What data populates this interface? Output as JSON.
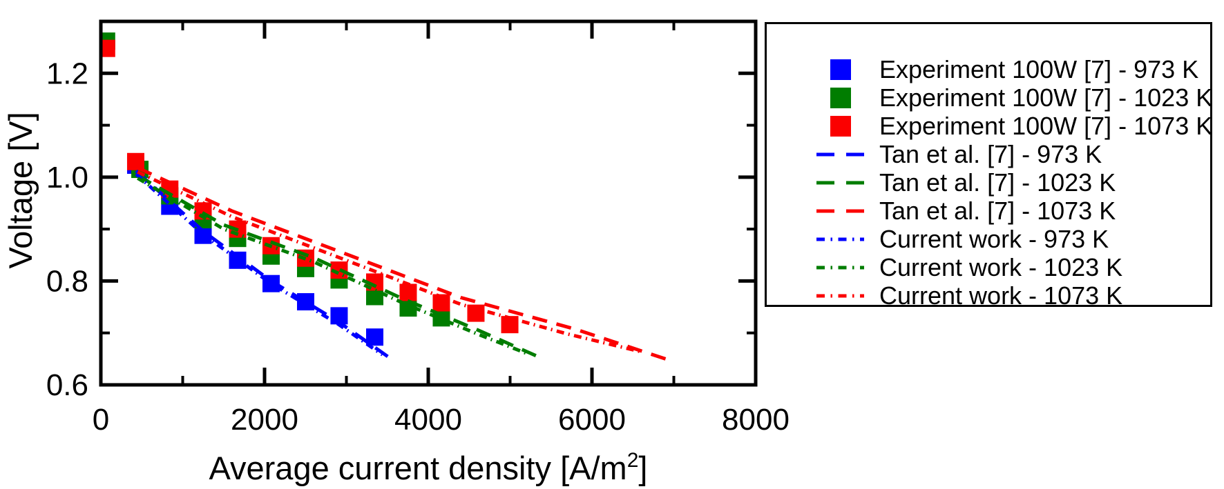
{
  "colors": {
    "blue": "#0000ff",
    "green": "#007d00",
    "red": "#fb0000",
    "axis": "#000000",
    "background": "#ffffff"
  },
  "chart_data": {
    "type": "scatter",
    "title": "",
    "xlabel": "Average current density [A/m2]",
    "xlabel_parts": {
      "pre": "Average current density [A/m",
      "sup": "2",
      "post": "]"
    },
    "ylabel": "Voltage [V]",
    "xlim": [
      0,
      8000
    ],
    "ylim": [
      0.6,
      1.3
    ],
    "x_major_ticks": [
      0,
      2000,
      4000,
      6000,
      8000
    ],
    "x_tick_labels": [
      "0",
      "2000",
      "4000",
      "6000",
      "8000"
    ],
    "x_minor_ticks": [
      1000,
      3000,
      5000,
      7000
    ],
    "y_major_ticks": [
      0.6,
      0.8,
      1.0,
      1.2
    ],
    "y_tick_labels": [
      "0.6",
      "0.8",
      "1.0",
      "1.2"
    ],
    "y_minor_ticks": [
      0.7,
      0.9,
      1.1
    ],
    "grid": false,
    "legend_position": "outside-right",
    "series": [
      {
        "name": "Experiment 100W [7] - 973 K",
        "color": "blue",
        "style": "marker",
        "points": [
          [
            426,
            1.023
          ],
          [
            842,
            0.944
          ],
          [
            1249,
            0.888
          ],
          [
            1671,
            0.84
          ],
          [
            2080,
            0.795
          ],
          [
            2502,
            0.76
          ],
          [
            2911,
            0.733
          ],
          [
            3346,
            0.692
          ]
        ]
      },
      {
        "name": "Experiment 100W [7] - 1023 K",
        "color": "green",
        "style": "marker",
        "points": [
          [
            70,
            1.262
          ],
          [
            477,
            1.015
          ],
          [
            842,
            0.964
          ],
          [
            1249,
            0.918
          ],
          [
            1671,
            0.882
          ],
          [
            2080,
            0.848
          ],
          [
            2502,
            0.824
          ],
          [
            2911,
            0.802
          ],
          [
            3346,
            0.77
          ],
          [
            3755,
            0.748
          ],
          [
            4160,
            0.729
          ]
        ]
      },
      {
        "name": "Experiment 100W [7] - 1073 K",
        "color": "red",
        "style": "marker",
        "points": [
          [
            70,
            1.248
          ],
          [
            426,
            1.03
          ],
          [
            842,
            0.977
          ],
          [
            1249,
            0.935
          ],
          [
            1671,
            0.9
          ],
          [
            2080,
            0.868
          ],
          [
            2502,
            0.844
          ],
          [
            2911,
            0.821
          ],
          [
            3346,
            0.798
          ],
          [
            3755,
            0.778
          ],
          [
            4160,
            0.758
          ],
          [
            4582,
            0.738
          ],
          [
            4996,
            0.716
          ]
        ]
      },
      {
        "name": "Tan et al. [7] - 973 K",
        "color": "blue",
        "style": "dash",
        "points": [
          [
            430,
            1.012
          ],
          [
            1250,
            0.896
          ],
          [
            2080,
            0.8
          ],
          [
            2900,
            0.722
          ],
          [
            3510,
            0.654
          ]
        ]
      },
      {
        "name": "Tan et al. [7] - 1023 K",
        "color": "green",
        "style": "dash",
        "points": [
          [
            450,
            1.003
          ],
          [
            1500,
            0.908
          ],
          [
            2600,
            0.845
          ],
          [
            3700,
            0.765
          ],
          [
            4600,
            0.706
          ],
          [
            5390,
            0.651
          ]
        ]
      },
      {
        "name": "Tan et al. [7] - 1073 K",
        "color": "red",
        "style": "dash",
        "points": [
          [
            450,
            1.018
          ],
          [
            1600,
            0.935
          ],
          [
            2930,
            0.856
          ],
          [
            4400,
            0.768
          ],
          [
            5800,
            0.707
          ],
          [
            6900,
            0.65
          ]
        ]
      },
      {
        "name": "Current work - 973 K",
        "color": "blue",
        "style": "dashdot",
        "points": [
          [
            430,
            1.006
          ],
          [
            1250,
            0.89
          ],
          [
            2080,
            0.795
          ],
          [
            2900,
            0.717
          ],
          [
            3440,
            0.658
          ]
        ]
      },
      {
        "name": "Current work - 1023 K",
        "color": "green",
        "style": "dashdot",
        "points": [
          [
            450,
            0.998
          ],
          [
            1500,
            0.9
          ],
          [
            2600,
            0.837
          ],
          [
            3700,
            0.757
          ],
          [
            4600,
            0.698
          ],
          [
            5210,
            0.66
          ]
        ]
      },
      {
        "name": "Current work - 1073 K",
        "color": "red",
        "style": "dashdot",
        "points": [
          [
            450,
            1.01
          ],
          [
            1600,
            0.924
          ],
          [
            2930,
            0.844
          ],
          [
            4400,
            0.755
          ],
          [
            5700,
            0.698
          ],
          [
            6620,
            0.663
          ]
        ]
      }
    ]
  }
}
